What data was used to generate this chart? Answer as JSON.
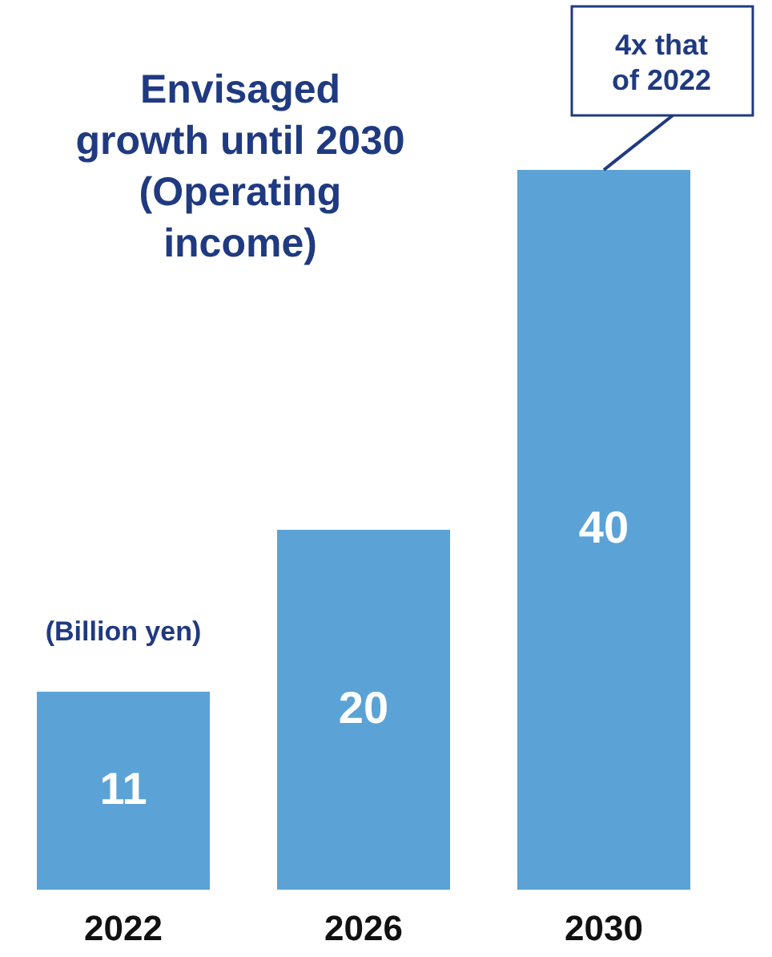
{
  "chart_data": {
    "type": "bar",
    "title": "Envisaged\ngrowth until 2030\n(Operating\nincome)",
    "categories": [
      "2022",
      "2026",
      "2030"
    ],
    "values": [
      11,
      20,
      40
    ],
    "color": "#5ba3d6",
    "data_labels": true,
    "annotations": [
      "(Billion yen)",
      {
        "text": "4x that\nof 2022",
        "x": "2030",
        "y": 40
      }
    ]
  }
}
